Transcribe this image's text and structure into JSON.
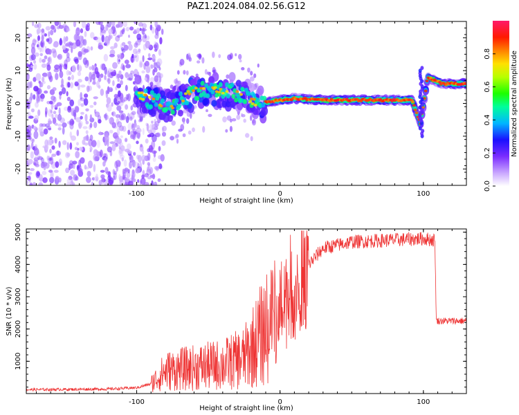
{
  "title": "PAZ1.2024.084.02.56.G12",
  "chart_data": [
    {
      "type": "heatmap",
      "xlabel": "Height of straight line (km)",
      "ylabel": "Frequency (Hz)",
      "xlim": [
        -177,
        130
      ],
      "ylim": [
        -25,
        25
      ],
      "xticks": [
        -100,
        0,
        100
      ],
      "yticks": [
        -20,
        -10,
        0,
        10,
        20
      ],
      "colorbar": {
        "label": "Normalized spectral amplitude",
        "range": [
          0,
          1
        ],
        "ticks": [
          0.0,
          0.2,
          0.4,
          0.6,
          0.8
        ]
      },
      "ridge": [
        {
          "x": -100,
          "f": 3
        },
        {
          "x": -85,
          "f": 0
        },
        {
          "x": -75,
          "f": -1
        },
        {
          "x": -60,
          "f": 4
        },
        {
          "x": -45,
          "f": 4
        },
        {
          "x": -30,
          "f": 3
        },
        {
          "x": -15,
          "f": 0
        },
        {
          "x": 0,
          "f": 1
        },
        {
          "x": 10,
          "f": 1.5
        },
        {
          "x": 30,
          "f": 1
        },
        {
          "x": 60,
          "f": 1
        },
        {
          "x": 92,
          "f": 1
        },
        {
          "x": 98,
          "f": -6
        },
        {
          "x": 103,
          "f": 8
        },
        {
          "x": 113,
          "f": 6
        },
        {
          "x": 130,
          "f": 6
        }
      ]
    },
    {
      "type": "line",
      "xlabel": "Height of straight line (km)",
      "ylabel": "SNR (10 * v/v)",
      "xlim": [
        -177,
        130
      ],
      "ylim": [
        0,
        5100
      ],
      "xticks": [
        -100,
        0,
        100
      ],
      "yticks": [
        1000,
        2000,
        3000,
        4000,
        5000
      ],
      "color": "#ee3333",
      "trend": [
        {
          "x": -177,
          "y": 120
        },
        {
          "x": -120,
          "y": 140
        },
        {
          "x": -100,
          "y": 180
        },
        {
          "x": -90,
          "y": 300
        },
        {
          "x": -80,
          "y": 700
        },
        {
          "x": -60,
          "y": 800
        },
        {
          "x": -40,
          "y": 900
        },
        {
          "x": -25,
          "y": 1100
        },
        {
          "x": -10,
          "y": 2000
        },
        {
          "x": 0,
          "y": 2800
        },
        {
          "x": 10,
          "y": 3400
        },
        {
          "x": 20,
          "y": 4000
        },
        {
          "x": 30,
          "y": 4500
        },
        {
          "x": 50,
          "y": 4700
        },
        {
          "x": 100,
          "y": 4800
        },
        {
          "x": 108,
          "y": 4750
        },
        {
          "x": 109,
          "y": 2250
        },
        {
          "x": 130,
          "y": 2250
        }
      ]
    }
  ]
}
